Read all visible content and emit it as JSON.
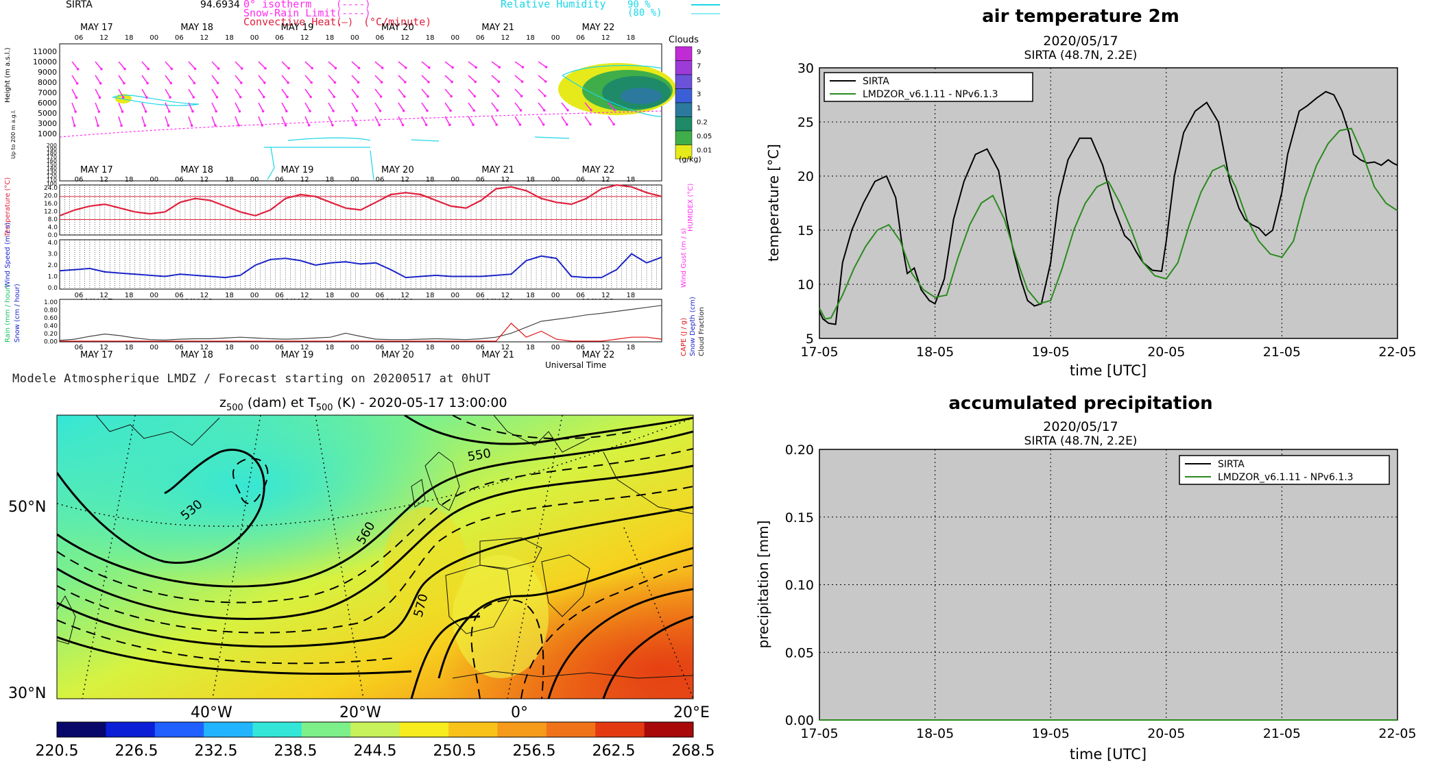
{
  "meteogram": {
    "station": "SIRTA",
    "station_value": "94.6934",
    "legend": {
      "isotherm": "0° isotherm",
      "snow_rain": "Snow-Rain Limit",
      "convective": "Convective Heat.",
      "convective_unit": "(°C/minute)",
      "rh_label": "Relative Humidity",
      "rh90": "90 %",
      "rh80": "(80 %)"
    },
    "days": [
      "MAY 17",
      "MAY 18",
      "MAY 19",
      "MAY 20",
      "MAY 21",
      "MAY 22"
    ],
    "hours": [
      "06",
      "12",
      "18",
      "00"
    ],
    "clouds_title": "Clouds",
    "clouds_unit": "(g/kg)",
    "clouds_scale": [
      "9",
      "7",
      "5",
      "3",
      "1",
      "0.2",
      "0.05",
      "0.01"
    ],
    "clouds_colors": [
      "#c02bd6",
      "#9c3bd8",
      "#6b52d8",
      "#3b5fd6",
      "#2b7a9e",
      "#1f8a68",
      "#3fae4a",
      "#e6ea1a"
    ],
    "height_label": "Height (m a.s.l.)",
    "height_label_low": "Up to 200 m a.g.l.",
    "height_ticks": [
      "11000",
      "10000",
      "9000",
      "8000",
      "7000",
      "6000",
      "5000",
      "3000",
      "1000",
      "200",
      "190",
      "180",
      "170",
      "160",
      "150",
      "140",
      "130",
      "120",
      "110",
      "100"
    ],
    "temp_label": "Temperature (°C)",
    "humidex_label": "HUMIDEX (°C)",
    "temp_ticks": [
      "24.0",
      "20.0",
      "16.0",
      "12.0",
      "8.0",
      "4.0",
      "0.0"
    ],
    "wind_label": "Wind Speed (m / s)",
    "gust_label": "Wind Gust (m / s)",
    "wind_ticks": [
      "4.0",
      "3.0",
      "2.0",
      "1.0",
      "0.0"
    ],
    "rain_label": "Rain (mm / hour)",
    "snow_label": "Snow (cm / hour)",
    "rain_ticks": [
      "1.00",
      "0.80",
      "0.60",
      "0.40",
      "0.20",
      "0.00"
    ],
    "cape_label": "CAPE (J / g)",
    "snowdepth_label": "Snow Depth (cm)",
    "cloudfrac_label": "Cloud Fraction",
    "xaxis_label": "Universal Time",
    "footer": "Modele Atmospherique LMDZ / Forecast starting on 20200517 at 0hUT",
    "temp_series": [
      10,
      13,
      15,
      16,
      14,
      12,
      11,
      12,
      17,
      19,
      18,
      15,
      12,
      10,
      13,
      19,
      21,
      20,
      17,
      14,
      13,
      17,
      21,
      22,
      21,
      18,
      15,
      14,
      18,
      24,
      25,
      23,
      19,
      17,
      16,
      19,
      24,
      26,
      25,
      22,
      20
    ],
    "wind_series": [
      1.5,
      1.6,
      1.7,
      1.4,
      1.3,
      1.2,
      1.1,
      1.0,
      1.2,
      1.1,
      1.0,
      0.9,
      1.1,
      2.0,
      2.5,
      2.6,
      2.4,
      2.0,
      2.2,
      2.3,
      2.1,
      2.2,
      1.6,
      0.9,
      1.0,
      1.1,
      1.0,
      1.0,
      1.0,
      1.1,
      1.2,
      2.4,
      2.8,
      2.6,
      1.0,
      0.9,
      0.9,
      1.6,
      3.0,
      2.2,
      2.7
    ],
    "cloudfrac_series": [
      0.02,
      0.05,
      0.12,
      0.18,
      0.14,
      0.08,
      0.04,
      0.03,
      0.05,
      0.06,
      0.06,
      0.08,
      0.1,
      0.08,
      0.06,
      0.05,
      0.06,
      0.08,
      0.1,
      0.2,
      0.12,
      0.05,
      0.04,
      0.04,
      0.05,
      0.06,
      0.05,
      0.04,
      0.06,
      0.1,
      0.2,
      0.35,
      0.5,
      0.55,
      0.6,
      0.66,
      0.7,
      0.75,
      0.8,
      0.85,
      0.9
    ],
    "cape_series": [
      0,
      0,
      0,
      0,
      0,
      0,
      0,
      0,
      0,
      0,
      0,
      0,
      0,
      0,
      0,
      0,
      0,
      0,
      0,
      0,
      0,
      0,
      0,
      0,
      0,
      0,
      0,
      0,
      0,
      0,
      0.45,
      0.1,
      0.25,
      0.05,
      0,
      0,
      0,
      0.05,
      0.1,
      0.1,
      0.05
    ],
    "colors": {
      "temperature": "#e0203c",
      "wind": "#1a24c8",
      "isotherm": "#ff2cf0",
      "humidity": "#19d6e6",
      "cape": "#e01010",
      "cloud_fraction": "#444444"
    }
  },
  "map": {
    "title_z": "z",
    "title_z_sub": "500",
    "title_mid": " (dam) et T",
    "title_t_sub": "500",
    "title_end": " (K) - 2020-05-17 13:00:00",
    "lat_labels": [
      "50°N",
      "30°N"
    ],
    "lon_labels": [
      "40°W",
      "20°W",
      "0°",
      "20°E"
    ],
    "contour_labels": [
      "530",
      "550",
      "560",
      "570"
    ],
    "colorbar_ticks": [
      "220.5",
      "226.5",
      "232.5",
      "238.5",
      "244.5",
      "250.5",
      "256.5",
      "262.5",
      "268.5"
    ],
    "colorbar_colors": [
      "#08086b",
      "#0a1fd6",
      "#1f60ff",
      "#22b4ff",
      "#33e6d8",
      "#7ef08a",
      "#c8f25a",
      "#f6ec1e",
      "#f8c21a",
      "#f59a1a",
      "#f0731a",
      "#e43a12",
      "#a80a0a"
    ]
  },
  "chart_data": [
    {
      "type": "line",
      "title": "air temperature 2m",
      "subtitle": "2020/05/17",
      "subtitle2": "SIRTA (48.7N, 2.2E)",
      "xlabel": "time [UTC]",
      "ylabel": "temperature [°C]",
      "x_ticks": [
        "17-05",
        "18-05",
        "19-05",
        "20-05",
        "21-05",
        "22-05"
      ],
      "y_ticks": [
        "5",
        "10",
        "15",
        "20",
        "25",
        "30"
      ],
      "xlim": [
        0,
        5
      ],
      "ylim": [
        5,
        30
      ],
      "grid": true,
      "legend_placement": "top-left",
      "series": [
        {
          "name": "SIRTA",
          "color": "#000000",
          "x": [
            0,
            0.03,
            0.08,
            0.14,
            0.2,
            0.28,
            0.38,
            0.48,
            0.58,
            0.66,
            0.71,
            0.76,
            0.82,
            0.88,
            0.95,
            1.0,
            1.08,
            1.16,
            1.25,
            1.35,
            1.45,
            1.55,
            1.62,
            1.68,
            1.74,
            1.8,
            1.86,
            1.92,
            2.0,
            2.07,
            2.15,
            2.25,
            2.35,
            2.45,
            2.55,
            2.64,
            2.69,
            2.74,
            2.8,
            2.88,
            2.96,
            3.0,
            3.07,
            3.15,
            3.25,
            3.35,
            3.45,
            3.55,
            3.63,
            3.68,
            3.74,
            3.8,
            3.86,
            3.92,
            4.0,
            4.05,
            4.1,
            4.15,
            4.22,
            4.3,
            4.38,
            4.45,
            4.52,
            4.58,
            4.62,
            4.68,
            4.74,
            4.8,
            4.86,
            4.92,
            4.96,
            5.0
          ],
          "y": [
            7.5,
            6.8,
            6.4,
            6.3,
            12.0,
            15.0,
            17.5,
            19.5,
            20.0,
            18.0,
            14.0,
            11.0,
            11.5,
            9.5,
            8.5,
            8.2,
            10.5,
            16.0,
            19.5,
            22.0,
            22.5,
            20.5,
            16.0,
            13.0,
            10.5,
            8.5,
            8.0,
            8.2,
            12.0,
            18.0,
            21.5,
            23.5,
            23.5,
            21.0,
            17.0,
            14.5,
            14.0,
            13.0,
            12.0,
            11.3,
            11.2,
            14.0,
            20.0,
            24.0,
            26.0,
            26.8,
            25.0,
            19.5,
            17.0,
            16.0,
            15.5,
            15.2,
            14.5,
            15.0,
            18.5,
            22.0,
            24.0,
            26.0,
            26.5,
            27.2,
            27.8,
            27.5,
            26.0,
            24.0,
            22.0,
            21.5,
            21.2,
            21.3,
            21.0,
            21.5,
            21.2,
            21.0
          ]
        },
        {
          "name": "LMDZOR_v6.1.11 - NPv6.1.3",
          "color": "#2a8a1e",
          "x": [
            0,
            0.05,
            0.1,
            0.2,
            0.3,
            0.4,
            0.5,
            0.6,
            0.7,
            0.8,
            0.9,
            1.0,
            1.1,
            1.2,
            1.3,
            1.4,
            1.5,
            1.6,
            1.7,
            1.8,
            1.9,
            2.0,
            2.1,
            2.2,
            2.3,
            2.4,
            2.5,
            2.6,
            2.7,
            2.8,
            2.9,
            3.0,
            3.1,
            3.2,
            3.3,
            3.4,
            3.5,
            3.6,
            3.7,
            3.8,
            3.9,
            4.0,
            4.1,
            4.2,
            4.3,
            4.4,
            4.5,
            4.6,
            4.7,
            4.8,
            4.9,
            5.0
          ],
          "y": [
            7.8,
            6.8,
            6.9,
            9.0,
            11.5,
            13.5,
            15.0,
            15.5,
            14.0,
            11.0,
            9.5,
            8.8,
            9.0,
            12.5,
            15.5,
            17.5,
            18.2,
            16.0,
            12.5,
            9.5,
            8.2,
            8.5,
            11.5,
            15.0,
            17.5,
            19.0,
            19.5,
            17.5,
            15.0,
            12.0,
            10.8,
            10.5,
            12.0,
            15.5,
            18.5,
            20.5,
            21.0,
            19.0,
            16.0,
            14.0,
            12.8,
            12.5,
            14.0,
            18.0,
            21.0,
            23.0,
            24.2,
            24.4,
            22.0,
            19.0,
            17.5,
            16.8
          ]
        }
      ]
    },
    {
      "type": "line",
      "title": "accumulated precipitation",
      "subtitle": "2020/05/17",
      "subtitle2": "SIRTA (48.7N, 2.2E)",
      "xlabel": "time [UTC]",
      "ylabel": "precipitation [mm]",
      "x_ticks": [
        "17-05",
        "18-05",
        "19-05",
        "20-05",
        "21-05",
        "22-05"
      ],
      "y_ticks": [
        "0.00",
        "0.05",
        "0.10",
        "0.15",
        "0.20"
      ],
      "xlim": [
        0,
        5
      ],
      "ylim": [
        0,
        0.2
      ],
      "grid": true,
      "legend_placement": "top-right",
      "series": [
        {
          "name": "SIRTA",
          "color": "#000000",
          "x": [
            0,
            5
          ],
          "y": [
            0,
            0
          ]
        },
        {
          "name": "LMDZOR_v6.1.11 - NPv6.1.3",
          "color": "#2a8a1e",
          "x": [
            0,
            5
          ],
          "y": [
            0,
            0
          ]
        }
      ]
    }
  ]
}
